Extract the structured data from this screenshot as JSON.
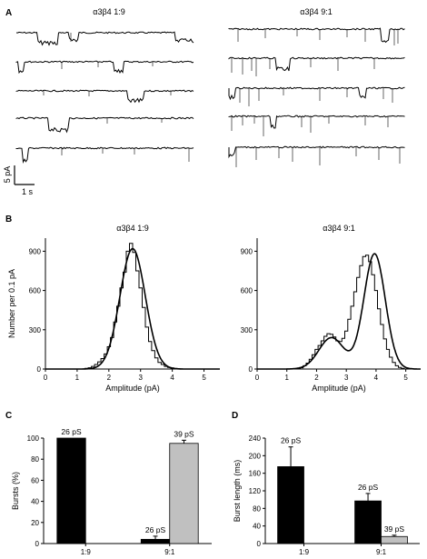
{
  "panels": {
    "A": "A",
    "B": "B",
    "C": "C",
    "D": "D"
  },
  "traces": {
    "left_title": "α3β4 1:9",
    "right_title": "α3β4 9:1",
    "scalebar_y_label": "5 pA",
    "scalebar_x_label": "1 s"
  },
  "chart_data": [
    {
      "type": "line",
      "panel": "B",
      "title": "α3β4 1:9",
      "xlabel": "Amplitude (pA)",
      "ylabel": "Number per 0.1 pA",
      "xlim": [
        0,
        5.5
      ],
      "ylim": [
        0,
        1000
      ],
      "xticks": [
        0,
        1,
        2,
        3,
        4,
        5
      ],
      "yticks": [
        0,
        300,
        600,
        900
      ],
      "series": [
        {
          "style": "histogram",
          "x": [
            1.3,
            1.4,
            1.5,
            1.6,
            1.7,
            1.8,
            1.9,
            2.0,
            2.1,
            2.2,
            2.3,
            2.4,
            2.5,
            2.6,
            2.7,
            2.8,
            2.9,
            3.0,
            3.1,
            3.2,
            3.3,
            3.4,
            3.5,
            3.6,
            3.7,
            3.8,
            3.9,
            4.0,
            4.1,
            4.2
          ],
          "y": [
            5,
            10,
            20,
            35,
            55,
            80,
            115,
            170,
            240,
            360,
            480,
            620,
            740,
            900,
            960,
            890,
            750,
            620,
            470,
            320,
            210,
            140,
            85,
            50,
            35,
            20,
            12,
            8,
            4,
            2
          ]
        },
        {
          "style": "fit",
          "components": [
            {
              "mean": 2.75,
              "sd": 0.4,
              "peak": 920
            }
          ]
        }
      ]
    },
    {
      "type": "line",
      "panel": "B",
      "title": "α3β4 9:1",
      "xlabel": "Amplitude (pA)",
      "ylabel": "",
      "xlim": [
        0,
        5.5
      ],
      "ylim": [
        0,
        1000
      ],
      "xticks": [
        0,
        1,
        2,
        3,
        4,
        5
      ],
      "yticks": [
        0,
        300,
        600,
        900
      ],
      "series": [
        {
          "style": "histogram",
          "x": [
            1.5,
            1.6,
            1.7,
            1.8,
            1.9,
            2.0,
            2.1,
            2.2,
            2.3,
            2.4,
            2.5,
            2.6,
            2.7,
            2.8,
            2.9,
            3.0,
            3.1,
            3.2,
            3.3,
            3.4,
            3.5,
            3.6,
            3.7,
            3.8,
            3.9,
            4.0,
            4.1,
            4.2,
            4.3,
            4.4,
            4.5,
            4.6,
            4.7,
            4.8,
            4.9
          ],
          "y": [
            10,
            25,
            45,
            75,
            110,
            150,
            180,
            215,
            250,
            270,
            265,
            245,
            215,
            210,
            235,
            290,
            380,
            480,
            590,
            700,
            790,
            860,
            870,
            820,
            720,
            600,
            460,
            340,
            230,
            150,
            90,
            50,
            25,
            12,
            5
          ]
        },
        {
          "style": "fit",
          "components": [
            {
              "mean": 2.5,
              "sd": 0.42,
              "peak": 240
            },
            {
              "mean": 3.95,
              "sd": 0.36,
              "peak": 880
            }
          ]
        }
      ]
    },
    {
      "type": "bar",
      "panel": "C",
      "categories": [
        "1:9",
        "9:1"
      ],
      "ylabel": "Bursts (%)",
      "ylim": [
        0,
        100
      ],
      "yticks": [
        0,
        20,
        40,
        60,
        80,
        100
      ],
      "series": [
        {
          "name": "26 pS",
          "color": "#000000",
          "values": [
            100,
            4
          ],
          "errors": [
            0,
            3
          ]
        },
        {
          "name": "39 pS",
          "color": "#c0c0c0",
          "values": [
            0,
            95
          ],
          "errors": [
            0,
            3
          ]
        }
      ],
      "annotations": [
        "26 pS",
        "26 pS",
        "39 pS"
      ]
    },
    {
      "type": "bar",
      "panel": "D",
      "categories": [
        "1:9",
        "9:1"
      ],
      "ylabel": "Burst length (ms)",
      "ylim": [
        0,
        240
      ],
      "yticks": [
        0,
        40,
        80,
        120,
        160,
        200,
        240
      ],
      "series": [
        {
          "name": "26 pS",
          "color": "#000000",
          "values": [
            175,
            97
          ],
          "errors": [
            45,
            17
          ]
        },
        {
          "name": "39 pS",
          "color": "#c0c0c0",
          "values": [
            0,
            16
          ],
          "errors": [
            0,
            3
          ]
        }
      ],
      "annotations": [
        "26 pS",
        "26 pS",
        "39 pS"
      ]
    }
  ]
}
